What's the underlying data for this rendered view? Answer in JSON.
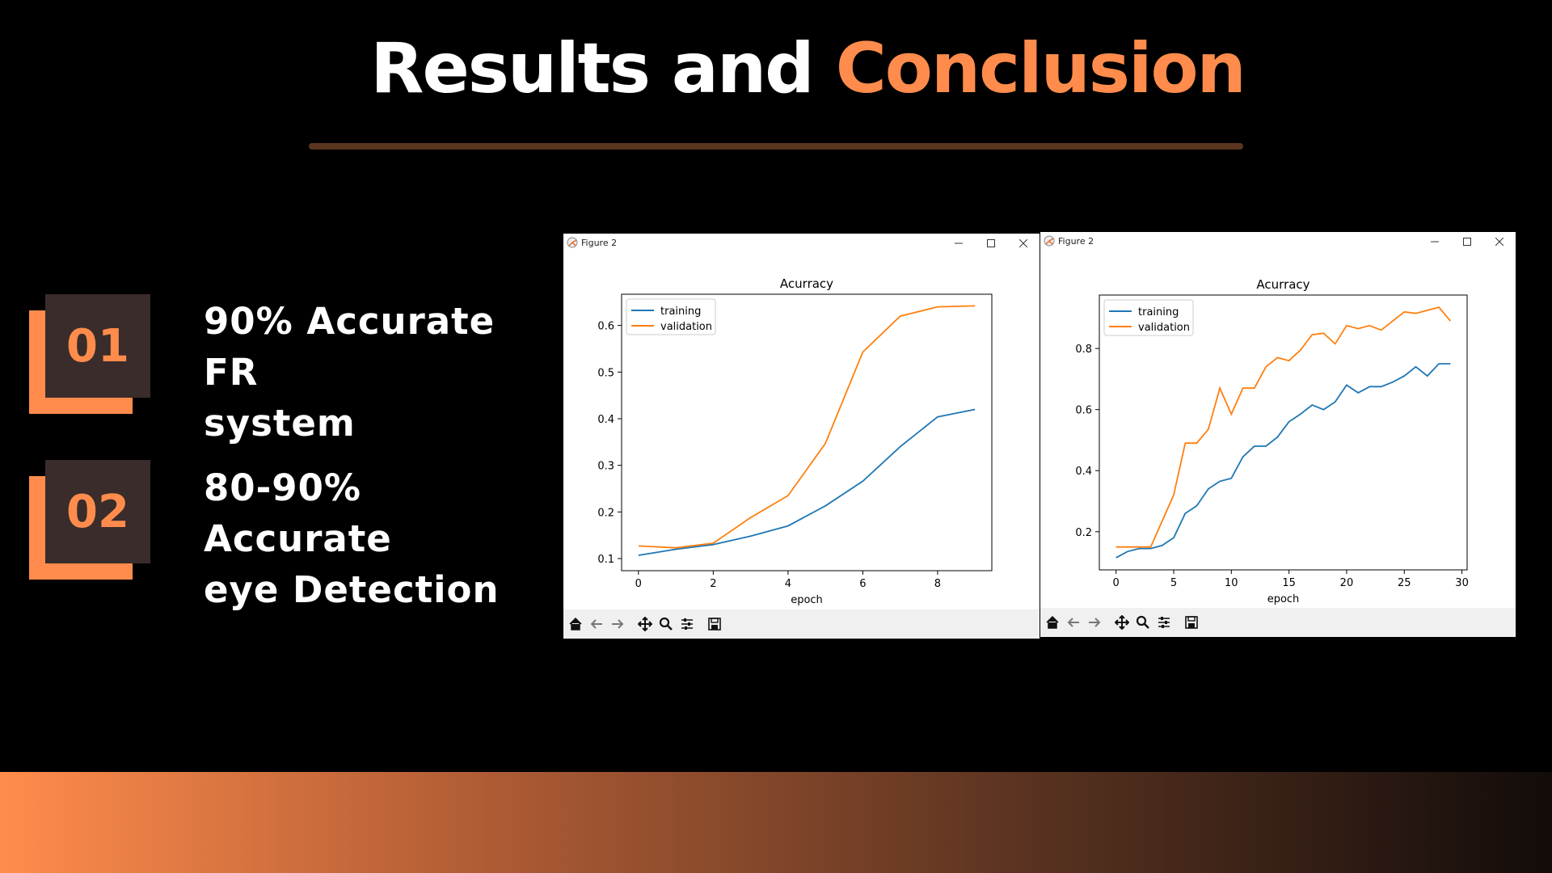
{
  "slide": {
    "title_main": "Results and",
    "title_accent": "Conclusion",
    "points": [
      {
        "number": "01",
        "text_line1": "90% Accurate FR",
        "text_line2": "system"
      },
      {
        "number": "02",
        "text_line1": "80-90% Accurate",
        "text_line2": "eye Detection"
      }
    ]
  },
  "windows": [
    {
      "title": "Figure 2",
      "minimize_icon": "minimize-icon",
      "maximize_icon": "maximize-icon",
      "close_icon": "close-icon"
    },
    {
      "title": "Figure 2",
      "minimize_icon": "minimize-icon",
      "maximize_icon": "maximize-icon",
      "close_icon": "close-icon"
    }
  ],
  "toolbar_icons": [
    "home-icon",
    "back-icon",
    "forward-icon",
    "pan-icon",
    "zoom-icon",
    "configure-subplots-icon",
    "save-icon"
  ],
  "colors": {
    "accent": "#ff8c4c",
    "training": "#1f77b4",
    "validation": "#ff7f0e"
  },
  "chart_data": [
    {
      "type": "line",
      "title": "Acurracy",
      "xlabel": "epoch",
      "ylabel": "",
      "xlim": [
        -0.45,
        9.45
      ],
      "ylim": [
        0.074,
        0.667
      ],
      "xticks": [
        0,
        2,
        4,
        6,
        8
      ],
      "yticks": [
        0.1,
        0.2,
        0.3,
        0.4,
        0.5,
        0.6
      ],
      "ytick_labels": [
        "0.1",
        "0.2",
        "0.3",
        "0.4",
        "0.5",
        "0.6"
      ],
      "legend_position": "top-left",
      "grid": false,
      "x": [
        0,
        1,
        2,
        3,
        4,
        5,
        6,
        7,
        8,
        9
      ],
      "series": [
        {
          "name": "training",
          "values": [
            0.107,
            0.12,
            0.13,
            0.148,
            0.17,
            0.213,
            0.266,
            0.34,
            0.404,
            0.42
          ]
        },
        {
          "name": "validation",
          "values": [
            0.127,
            0.123,
            0.133,
            0.188,
            0.235,
            0.347,
            0.543,
            0.62,
            0.64,
            0.642
          ]
        }
      ]
    },
    {
      "type": "line",
      "title": "Acurracy",
      "xlabel": "epoch",
      "ylabel": "",
      "xlim": [
        -1.45,
        30.45
      ],
      "ylim": [
        0.075,
        0.975
      ],
      "xticks": [
        0,
        5,
        10,
        15,
        20,
        25,
        30
      ],
      "yticks": [
        0.2,
        0.4,
        0.6,
        0.8
      ],
      "ytick_labels": [
        "0.2",
        "0.4",
        "0.6",
        "0.8"
      ],
      "legend_position": "top-left",
      "grid": false,
      "x": [
        0,
        1,
        2,
        3,
        4,
        5,
        6,
        7,
        8,
        9,
        10,
        11,
        12,
        13,
        14,
        15,
        16,
        17,
        18,
        19,
        20,
        21,
        22,
        23,
        24,
        25,
        26,
        27,
        28,
        29
      ],
      "series": [
        {
          "name": "training",
          "values": [
            0.115,
            0.135,
            0.145,
            0.145,
            0.155,
            0.18,
            0.26,
            0.285,
            0.34,
            0.365,
            0.375,
            0.445,
            0.48,
            0.48,
            0.51,
            0.56,
            0.585,
            0.615,
            0.6,
            0.625,
            0.68,
            0.655,
            0.675,
            0.675,
            0.69,
            0.71,
            0.74,
            0.71,
            0.75,
            0.75
          ]
        },
        {
          "name": "validation",
          "values": [
            0.15,
            0.15,
            0.15,
            0.15,
            0.235,
            0.32,
            0.49,
            0.49,
            0.535,
            0.67,
            0.585,
            0.67,
            0.67,
            0.74,
            0.77,
            0.76,
            0.795,
            0.845,
            0.85,
            0.815,
            0.875,
            0.865,
            0.875,
            0.86,
            0.89,
            0.92,
            0.915,
            0.925,
            0.935,
            0.89
          ]
        }
      ]
    }
  ]
}
